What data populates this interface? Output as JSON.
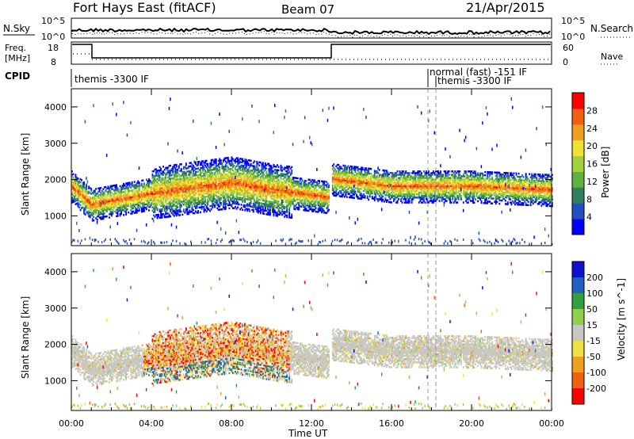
{
  "header": {
    "radar_title": "Fort Hays East (fitACF)",
    "beam": "Beam 07",
    "date": "21/Apr/2015"
  },
  "noise_panel": {
    "left_label": "N.Sky",
    "right_label": "N.Search",
    "left_ticks": [
      "10^5",
      "10^0"
    ],
    "right_ticks": [
      "10^5",
      "10^0"
    ]
  },
  "freq_panel": {
    "left_label_line1": "Freq.",
    "left_label_line2": "[MHz]",
    "right_label": "Nave",
    "left_ticks": [
      "18",
      "8"
    ],
    "right_ticks": [
      "60",
      "0"
    ]
  },
  "cpid_panel": {
    "label": "CPID",
    "segments": [
      {
        "text": "themis -3300 IF"
      },
      {
        "text": "normal (fast) -151 IF"
      },
      {
        "text": "themis -3300 IF"
      }
    ]
  },
  "x_axis": {
    "label": "Time UT",
    "ticks": [
      "00:00",
      "04:00",
      "08:00",
      "12:00",
      "16:00",
      "20:00",
      "00:00"
    ]
  },
  "y_axis": {
    "label": "Slant Range [km]",
    "ticks": [
      "1000",
      "2000",
      "3000",
      "4000"
    ]
  },
  "colors": {
    "ground_scatter": "#c8c8c0",
    "power_scale": [
      "#0000ff",
      "#2050c0",
      "#308060",
      "#60b040",
      "#a0d040",
      "#f0e030",
      "#f0a020",
      "#f06010",
      "#ff0000"
    ],
    "velocity_scale": [
      "#1010d0",
      "#2060c0",
      "#30a040",
      "#90d050",
      "#f0e040",
      "#f0a020",
      "#f06010",
      "#ff0000"
    ]
  },
  "power_bar": {
    "label": "Power [dB]",
    "ticks": [
      "4",
      "8",
      "12",
      "16",
      "20",
      "24",
      "28"
    ]
  },
  "velocity_bar": {
    "label": "Velocity [m s^-1]",
    "ticks": [
      "200",
      "100",
      "50",
      "15",
      "-15",
      "-50",
      "-100",
      "-200"
    ]
  },
  "chart_data": [
    {
      "type": "heatmap",
      "title": "Power",
      "x_range_hours": [
        0,
        24
      ],
      "y_range_km": [
        180,
        4500
      ],
      "scale": "Power [dB]",
      "note_x": "time UT in hours",
      "main_band": {
        "x": [
          0,
          1,
          4,
          8,
          10,
          12.9,
          13,
          16,
          20,
          24
        ],
        "y": [
          1800,
          1300,
          1600,
          1900,
          1700,
          1500,
          2000,
          1800,
          1800,
          1700
        ]
      },
      "gap_hours": [
        12.9,
        13.0
      ]
    },
    {
      "type": "heatmap",
      "title": "Velocity",
      "x_range_hours": [
        0,
        24
      ],
      "y_range_km": [
        180,
        4500
      ],
      "scale": "Velocity [m s^-1]",
      "main_band": {
        "x": [
          0,
          1,
          4,
          8,
          10,
          12.9,
          13,
          16,
          20,
          24
        ],
        "y": [
          1800,
          1300,
          1600,
          1900,
          1700,
          1500,
          2000,
          1800,
          1800,
          1700
        ]
      },
      "ground_scatter_band": {
        "x": [
          0,
          4,
          13,
          24
        ],
        "y": [
          1800,
          1600,
          2000,
          1700
        ]
      }
    }
  ]
}
